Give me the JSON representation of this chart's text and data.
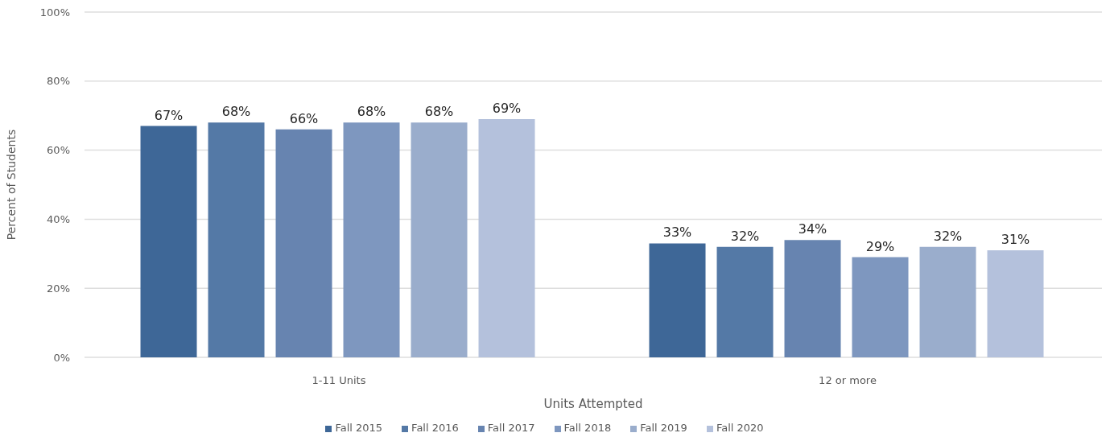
{
  "chart_data": {
    "type": "bar",
    "xlabel": "Units Attempted",
    "ylabel": "Percent of Students",
    "categories": [
      "1-11 Units",
      "12 or more"
    ],
    "series": [
      {
        "name": "Fall 2015",
        "color": "#3e6797",
        "values": [
          67,
          33
        ],
        "value_labels": [
          "67%",
          "33%"
        ]
      },
      {
        "name": "Fall 2016",
        "color": "#5479a6",
        "values": [
          68,
          32
        ],
        "value_labels": [
          "68%",
          "32%"
        ]
      },
      {
        "name": "Fall 2017",
        "color": "#6784b0",
        "values": [
          66,
          34
        ],
        "value_labels": [
          "66%",
          "34%"
        ]
      },
      {
        "name": "Fall 2018",
        "color": "#7e97bf",
        "values": [
          68,
          29
        ],
        "value_labels": [
          "68%",
          "29%"
        ]
      },
      {
        "name": "Fall 2019",
        "color": "#9aadcc",
        "values": [
          68,
          32
        ],
        "value_labels": [
          "68%",
          "32%"
        ]
      },
      {
        "name": "Fall 2020",
        "color": "#b4c1dc",
        "values": [
          69,
          31
        ],
        "value_labels": [
          "69%",
          "31%"
        ]
      }
    ],
    "ylim": [
      0,
      100
    ],
    "yticks": [
      {
        "value": 0,
        "label": "0%"
      },
      {
        "value": 20,
        "label": "20%"
      },
      {
        "value": 40,
        "label": "40%"
      },
      {
        "value": 60,
        "label": "60%"
      },
      {
        "value": 80,
        "label": "80%"
      },
      {
        "value": 100,
        "label": "100%"
      }
    ],
    "grid": "y",
    "legend": "bottom"
  }
}
